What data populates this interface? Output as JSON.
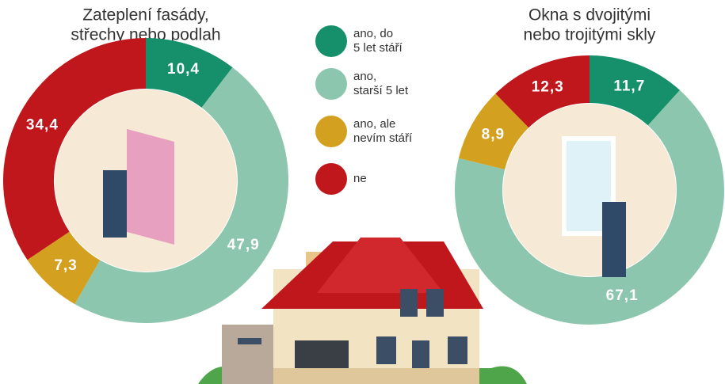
{
  "chart_data": [
    {
      "type": "pie",
      "title": [
        "Zateplení fasády,",
        "střechy nebo podlah"
      ],
      "values": [
        10.4,
        47.9,
        7.3,
        34.4
      ],
      "value_labels": [
        "10,4",
        "47,9",
        "7,3",
        "34,4"
      ]
    },
    {
      "type": "pie",
      "title": [
        "Okna s dvojitými",
        "nebo trojitými skly"
      ],
      "values": [
        11.7,
        67.1,
        8.9,
        12.3
      ],
      "value_labels": [
        "11,7",
        "67,1",
        "8,9",
        "12,3"
      ]
    }
  ],
  "legend": {
    "entries": [
      {
        "label": [
          "ano, do",
          "5 let stáří"
        ],
        "color": "#15906a"
      },
      {
        "label": [
          "ano,",
          "starší 5 let"
        ],
        "color": "#8dc6ae"
      },
      {
        "label": [
          "ano, ale",
          "nevím stáří"
        ],
        "color": "#d4a01f"
      },
      {
        "label": [
          "ne"
        ],
        "color": "#c0171c"
      }
    ]
  }
}
